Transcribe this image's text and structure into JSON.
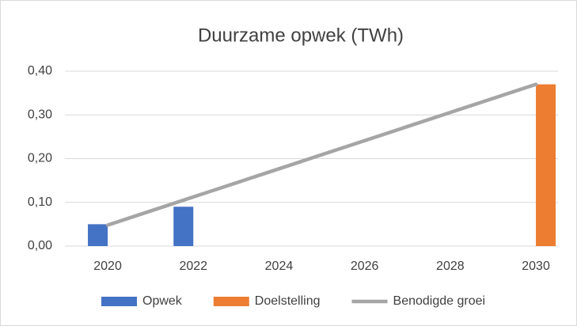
{
  "chart_data": {
    "type": "bar+line",
    "title": "Duurzame opwek (TWh)",
    "categories": [
      "2020",
      null,
      "2022",
      null,
      "2024",
      null,
      "2026",
      null,
      "2028",
      null,
      "2030"
    ],
    "series": [
      {
        "name": "Opwek",
        "type": "bar",
        "color": "#4472c4",
        "values": [
          0.05,
          null,
          0.09,
          null,
          null,
          null,
          null,
          null,
          null,
          null,
          null
        ]
      },
      {
        "name": "Doelstelling",
        "type": "bar",
        "color": "#ed7d31",
        "values": [
          null,
          null,
          null,
          null,
          null,
          null,
          null,
          null,
          null,
          null,
          0.37
        ]
      },
      {
        "name": "Benodigde groei",
        "type": "line",
        "color": "#a5a5a5",
        "values": [
          0.048,
          0.0802,
          0.1124,
          0.1446,
          0.1768,
          0.209,
          0.2412,
          0.2734,
          0.3056,
          0.3378,
          0.37
        ]
      }
    ],
    "ylim": [
      0,
      0.4
    ],
    "yticks": [
      {
        "value": 0,
        "label": "0,00"
      },
      {
        "value": 0.1,
        "label": "0,10"
      },
      {
        "value": 0.2,
        "label": "0,20"
      },
      {
        "value": 0.3,
        "label": "0,30"
      },
      {
        "value": 0.4,
        "label": "0,40"
      }
    ],
    "grid": true,
    "legend": "bottom"
  }
}
